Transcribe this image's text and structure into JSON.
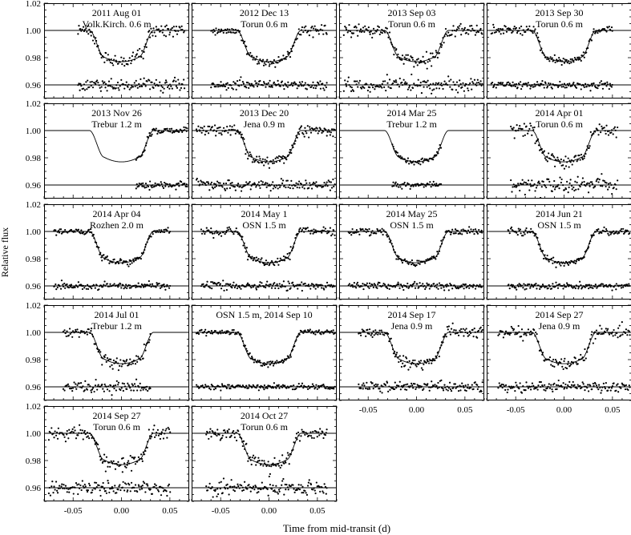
{
  "figure": {
    "ylabel": "Relative flux",
    "xlabel": "Time from mid-transit (d)"
  },
  "chart_data": {
    "type": "scatter",
    "layout": "grid of 18 light-curve panels (5 rows x 4 columns), shared axes",
    "xlabel": "Time from mid-transit (d)",
    "ylabel": "Relative flux",
    "xlim": [
      -0.08,
      0.07
    ],
    "ylim": [
      0.95,
      1.02
    ],
    "x_ticks": [
      "-0.05",
      "0.00",
      "0.05"
    ],
    "x_tick_values": [
      -0.05,
      0.0,
      0.05
    ],
    "y_ticks": [
      "0.96",
      "0.98",
      "1.00",
      "1.02"
    ],
    "y_tick_values": [
      0.96,
      0.98,
      1.0,
      1.02
    ],
    "model": {
      "baseline_flux": 1.0,
      "transit_depth": 0.023,
      "ingress_start": -0.033,
      "full_transit_start": -0.018,
      "full_transit_end": 0.018,
      "egress_end": 0.033
    },
    "residual_baseline_flux": 0.96,
    "panels": [
      {
        "label": "2011 Aug 01",
        "sublabel": "Volk.Kirch. 0.6 m",
        "data_x_range": [
          -0.045,
          0.065
        ],
        "scatter": 0.0025
      },
      {
        "label": "2012 Dec 13",
        "sublabel": "Torun 0.6 m",
        "data_x_range": [
          -0.06,
          0.06
        ],
        "scatter": 0.0015
      },
      {
        "label": "2013 Sep 03",
        "sublabel": "Torun 0.6 m",
        "data_x_range": [
          -0.075,
          0.068
        ],
        "scatter": 0.0025
      },
      {
        "label": "2013 Sep 30",
        "sublabel": "Torun 0.6 m",
        "data_x_range": [
          -0.075,
          0.05
        ],
        "scatter": 0.0015
      },
      {
        "label": "2013 Nov 26",
        "sublabel": "Trebur 1.2 m",
        "data_x_range": [
          0.015,
          0.068
        ],
        "scatter": 0.0012
      },
      {
        "label": "2013 Dec 20",
        "sublabel": "Jena 0.9 m",
        "data_x_range": [
          -0.075,
          0.068
        ],
        "scatter": 0.002
      },
      {
        "label": "2014 Mar 25",
        "sublabel": "Trebur 1.2 m",
        "data_x_range": [
          -0.025,
          0.025
        ],
        "scatter": 0.0012
      },
      {
        "label": "2014 Apr 01",
        "sublabel": "Torun 0.6 m",
        "data_x_range": [
          -0.055,
          0.055
        ],
        "scatter": 0.0025
      },
      {
        "label": "2014 Apr 04",
        "sublabel": "Rozhen 2.0 m",
        "data_x_range": [
          -0.07,
          0.05
        ],
        "scatter": 0.0012
      },
      {
        "label": "2014 May 1",
        "sublabel": "OSN 1.5 m",
        "data_x_range": [
          -0.07,
          0.068
        ],
        "scatter": 0.0015
      },
      {
        "label": "2014 May 25",
        "sublabel": "OSN 1.5 m",
        "data_x_range": [
          -0.07,
          0.068
        ],
        "scatter": 0.0012
      },
      {
        "label": "2014 Jun 21",
        "sublabel": "OSN 1.5 m",
        "data_x_range": [
          -0.058,
          0.068
        ],
        "scatter": 0.0012
      },
      {
        "label": "2014 Jul 01",
        "sublabel": "Trebur 1.2 m",
        "data_x_range": [
          -0.06,
          0.03
        ],
        "scatter": 0.002
      },
      {
        "label": "OSN 1.5 m, 2014 Sep 10",
        "sublabel": "",
        "data_x_range": [
          -0.075,
          0.068
        ],
        "scatter": 0.001
      },
      {
        "label": "2014 Sep 17",
        "sublabel": "Jena 0.9 m",
        "data_x_range": [
          -0.06,
          0.068
        ],
        "scatter": 0.002
      },
      {
        "label": "2014 Sep 27",
        "sublabel": "Jena 0.9 m",
        "data_x_range": [
          -0.068,
          0.068
        ],
        "scatter": 0.002
      },
      {
        "label": "2014 Sep 27",
        "sublabel": "Torun 0.6 m",
        "data_x_range": [
          -0.075,
          0.05
        ],
        "scatter": 0.0025
      },
      {
        "label": "2014 Oct 27",
        "sublabel": "Torun 0.6 m",
        "data_x_range": [
          -0.065,
          0.06
        ],
        "scatter": 0.0025
      }
    ]
  }
}
